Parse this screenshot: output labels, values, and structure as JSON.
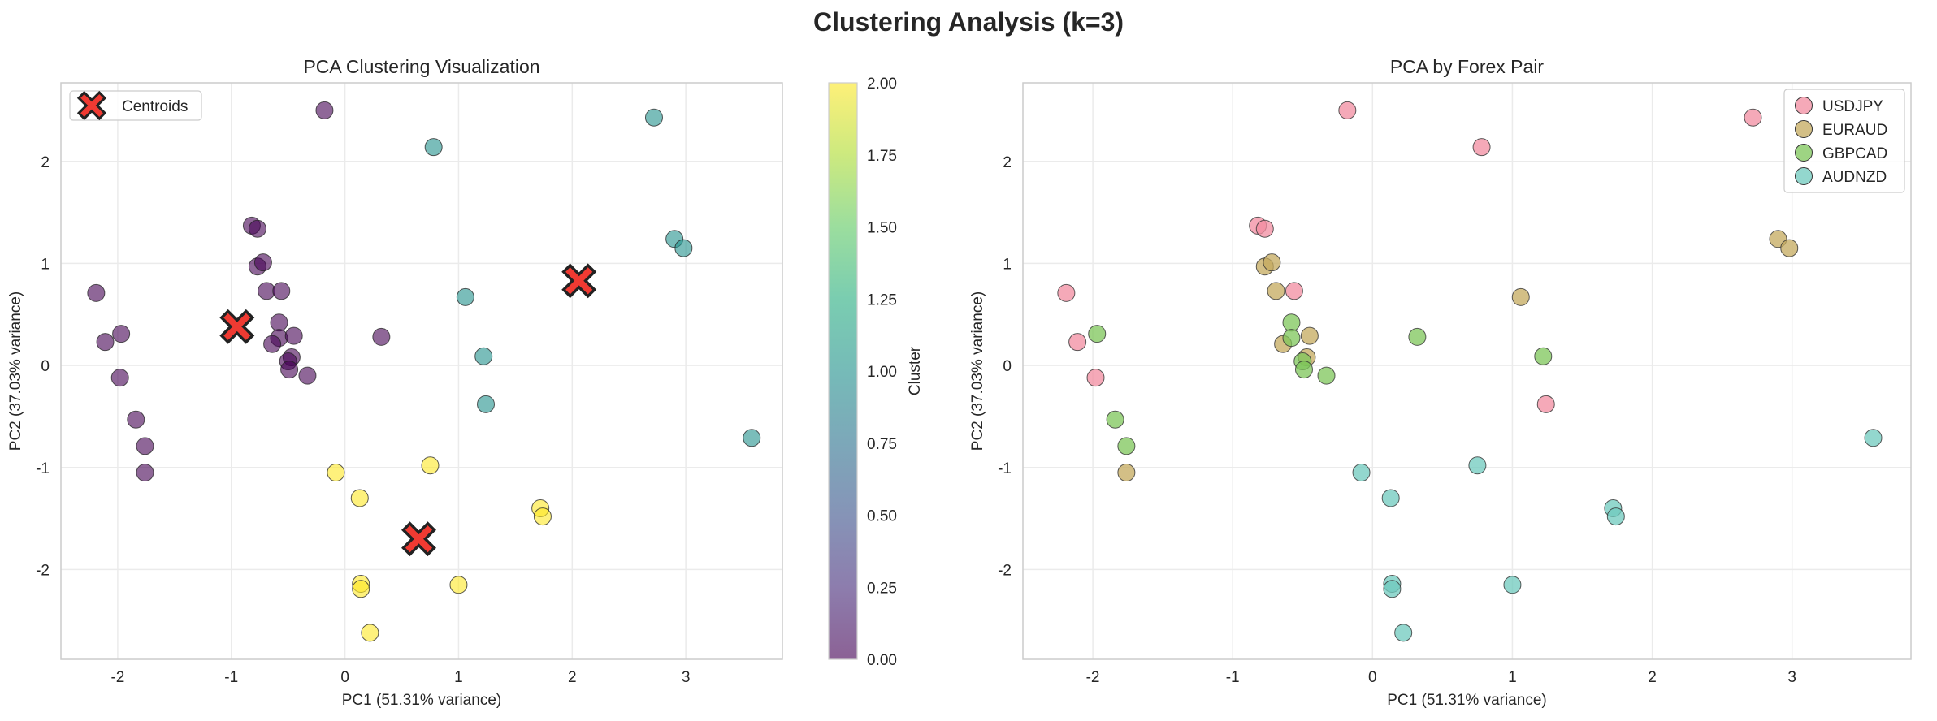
{
  "figure": {
    "suptitle": "Clustering Analysis (k=3)"
  },
  "chart_data": [
    {
      "type": "scatter",
      "title": "PCA Clustering Visualization",
      "xlabel": "PC1 (51.31% variance)",
      "ylabel": "PC2 (37.03% variance)",
      "xlim": [
        -2.5,
        3.85
      ],
      "ylim": [
        -2.88,
        2.77
      ],
      "xticks": [
        -2,
        -1,
        0,
        1,
        2,
        3
      ],
      "yticks": [
        -2,
        -1,
        0,
        1,
        2
      ],
      "xtick_labels": [
        "-2",
        "-1",
        "0",
        "1",
        "2",
        "3"
      ],
      "ytick_labels": [
        "-2",
        "-1",
        "0",
        "1",
        "2"
      ],
      "grid": true,
      "colormap": "viridis",
      "point_alpha": 0.6,
      "points": [
        {
          "x": -0.18,
          "y": 2.5,
          "cluster": 0
        },
        {
          "x": 0.78,
          "y": 2.14,
          "cluster": 1
        },
        {
          "x": 2.72,
          "y": 2.43,
          "cluster": 1
        },
        {
          "x": -0.82,
          "y": 1.37,
          "cluster": 0
        },
        {
          "x": -0.77,
          "y": 1.34,
          "cluster": 0
        },
        {
          "x": -0.77,
          "y": 0.97,
          "cluster": 0
        },
        {
          "x": -0.72,
          "y": 1.01,
          "cluster": 0
        },
        {
          "x": -0.69,
          "y": 0.73,
          "cluster": 0
        },
        {
          "x": -0.56,
          "y": 0.73,
          "cluster": 0
        },
        {
          "x": -2.19,
          "y": 0.71,
          "cluster": 0
        },
        {
          "x": -2.11,
          "y": 0.23,
          "cluster": 0
        },
        {
          "x": -1.97,
          "y": 0.31,
          "cluster": 0
        },
        {
          "x": -1.98,
          "y": -0.12,
          "cluster": 0
        },
        {
          "x": -0.58,
          "y": 0.42,
          "cluster": 0
        },
        {
          "x": -0.58,
          "y": 0.27,
          "cluster": 0
        },
        {
          "x": -0.45,
          "y": 0.29,
          "cluster": 0
        },
        {
          "x": -0.64,
          "y": 0.21,
          "cluster": 0
        },
        {
          "x": -0.47,
          "y": 0.08,
          "cluster": 0
        },
        {
          "x": -0.5,
          "y": 0.04,
          "cluster": 0
        },
        {
          "x": -0.49,
          "y": -0.04,
          "cluster": 0
        },
        {
          "x": -0.33,
          "y": -0.1,
          "cluster": 0
        },
        {
          "x": 0.32,
          "y": 0.28,
          "cluster": 0
        },
        {
          "x": -1.84,
          "y": -0.53,
          "cluster": 0
        },
        {
          "x": -1.76,
          "y": -0.79,
          "cluster": 0
        },
        {
          "x": -1.76,
          "y": -1.05,
          "cluster": 0
        },
        {
          "x": 1.06,
          "y": 0.67,
          "cluster": 1
        },
        {
          "x": 1.22,
          "y": 0.09,
          "cluster": 1
        },
        {
          "x": 1.24,
          "y": -0.38,
          "cluster": 1
        },
        {
          "x": 2.9,
          "y": 1.24,
          "cluster": 1
        },
        {
          "x": 2.98,
          "y": 1.15,
          "cluster": 1
        },
        {
          "x": 3.58,
          "y": -0.71,
          "cluster": 1
        },
        {
          "x": -0.08,
          "y": -1.05,
          "cluster": 2
        },
        {
          "x": 0.13,
          "y": -1.3,
          "cluster": 2
        },
        {
          "x": 0.75,
          "y": -0.98,
          "cluster": 2
        },
        {
          "x": 1.72,
          "y": -1.4,
          "cluster": 2
        },
        {
          "x": 1.74,
          "y": -1.48,
          "cluster": 2
        },
        {
          "x": 0.14,
          "y": -2.14,
          "cluster": 2
        },
        {
          "x": 0.14,
          "y": -2.19,
          "cluster": 2
        },
        {
          "x": 1.0,
          "y": -2.15,
          "cluster": 2
        },
        {
          "x": 0.22,
          "y": -2.62,
          "cluster": 2
        }
      ],
      "centroids": {
        "label": "Centroids",
        "color": "#f03a32",
        "points": [
          {
            "x": -0.95,
            "y": 0.38
          },
          {
            "x": 2.06,
            "y": 0.83
          },
          {
            "x": 0.65,
            "y": -1.7
          }
        ]
      },
      "legend": {
        "position": "top-left",
        "entries": [
          "Centroids"
        ]
      },
      "colorbar": {
        "label": "Cluster",
        "min": 0.0,
        "max": 2.0,
        "ticks": [
          0.0,
          0.25,
          0.5,
          0.75,
          1.0,
          1.25,
          1.5,
          1.75,
          2.0
        ],
        "tick_labels": [
          "0.00",
          "0.25",
          "0.50",
          "0.75",
          "1.00",
          "1.25",
          "1.50",
          "1.75",
          "2.00"
        ]
      }
    },
    {
      "type": "scatter",
      "title": "PCA by Forex Pair",
      "xlabel": "PC1 (51.31% variance)",
      "ylabel": "PC2 (37.03% variance)",
      "xlim": [
        -2.5,
        3.85
      ],
      "ylim": [
        -2.88,
        2.77
      ],
      "xticks": [
        -2,
        -1,
        0,
        1,
        2,
        3
      ],
      "yticks": [
        -2,
        -1,
        0,
        1,
        2
      ],
      "xtick_labels": [
        "-2",
        "-1",
        "0",
        "1",
        "2",
        "3"
      ],
      "ytick_labels": [
        "-2",
        "-1",
        "0",
        "1",
        "2"
      ],
      "grid": true,
      "legend": {
        "position": "top-right"
      },
      "series": [
        {
          "name": "USDJPY",
          "color": "#f28ca0",
          "points": [
            {
              "x": -0.18,
              "y": 2.5
            },
            {
              "x": 0.78,
              "y": 2.14
            },
            {
              "x": 2.72,
              "y": 2.43
            },
            {
              "x": -0.82,
              "y": 1.37
            },
            {
              "x": -0.77,
              "y": 1.34
            },
            {
              "x": -0.56,
              "y": 0.73
            },
            {
              "x": -2.19,
              "y": 0.71
            },
            {
              "x": -2.11,
              "y": 0.23
            },
            {
              "x": -1.98,
              "y": -0.12
            },
            {
              "x": 1.24,
              "y": -0.38
            }
          ]
        },
        {
          "name": "EURAUD",
          "color": "#c4a95e",
          "points": [
            {
              "x": -0.77,
              "y": 0.97
            },
            {
              "x": -0.72,
              "y": 1.01
            },
            {
              "x": -0.69,
              "y": 0.73
            },
            {
              "x": -0.45,
              "y": 0.29
            },
            {
              "x": -0.64,
              "y": 0.21
            },
            {
              "x": -0.47,
              "y": 0.08
            },
            {
              "x": 1.06,
              "y": 0.67
            },
            {
              "x": 2.9,
              "y": 1.24
            },
            {
              "x": 2.98,
              "y": 1.15
            },
            {
              "x": -1.76,
              "y": -1.05
            }
          ]
        },
        {
          "name": "GBPCAD",
          "color": "#7ec65a",
          "points": [
            {
              "x": -1.97,
              "y": 0.31
            },
            {
              "x": -0.58,
              "y": 0.42
            },
            {
              "x": -0.58,
              "y": 0.27
            },
            {
              "x": -0.5,
              "y": 0.04
            },
            {
              "x": -0.49,
              "y": -0.04
            },
            {
              "x": -0.33,
              "y": -0.1
            },
            {
              "x": 0.32,
              "y": 0.28
            },
            {
              "x": 1.22,
              "y": 0.09
            },
            {
              "x": -1.84,
              "y": -0.53
            },
            {
              "x": -1.76,
              "y": -0.79
            }
          ]
        },
        {
          "name": "AUDNZD",
          "color": "#6fc9bd",
          "points": [
            {
              "x": 3.58,
              "y": -0.71
            },
            {
              "x": -0.08,
              "y": -1.05
            },
            {
              "x": 0.13,
              "y": -1.3
            },
            {
              "x": 0.75,
              "y": -0.98
            },
            {
              "x": 1.72,
              "y": -1.4
            },
            {
              "x": 1.74,
              "y": -1.48
            },
            {
              "x": 0.14,
              "y": -2.14
            },
            {
              "x": 0.14,
              "y": -2.19
            },
            {
              "x": 1.0,
              "y": -2.15
            },
            {
              "x": 0.22,
              "y": -2.62
            }
          ]
        }
      ]
    }
  ]
}
